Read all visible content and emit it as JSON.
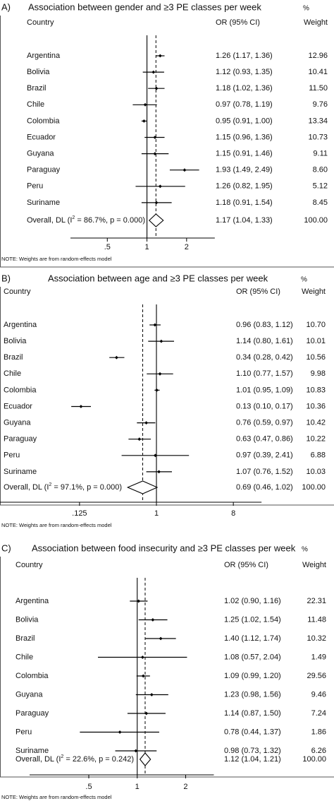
{
  "chart_data": [
    {
      "type": "forest",
      "panel_label": "A)",
      "title": "Association between gender and ≥3 PE classes per week",
      "percent_label": "%",
      "column_headers": {
        "country": "Country",
        "or": "OR (95% CI)",
        "weight": "Weight"
      },
      "x_scale": "log",
      "x_ticks": [
        0.5,
        1,
        2
      ],
      "x_tick_labels": [
        ".5",
        "1",
        "2"
      ],
      "xlim": [
        0.38,
        2.9
      ],
      "null_line": 1,
      "rows": [
        {
          "country": "Argentina",
          "or": 1.26,
          "lo": 1.17,
          "hi": 1.36,
          "ci_text": "1.26 (1.17, 1.36)",
          "weight": "12.96"
        },
        {
          "country": "Bolivia",
          "or": 1.12,
          "lo": 0.93,
          "hi": 1.35,
          "ci_text": "1.12 (0.93, 1.35)",
          "weight": "10.41"
        },
        {
          "country": "Brazil",
          "or": 1.18,
          "lo": 1.02,
          "hi": 1.36,
          "ci_text": "1.18 (1.02, 1.36)",
          "weight": "11.50"
        },
        {
          "country": "Chile",
          "or": 0.97,
          "lo": 0.78,
          "hi": 1.19,
          "ci_text": "0.97 (0.78, 1.19)",
          "weight": "9.76"
        },
        {
          "country": "Colombia",
          "or": 0.95,
          "lo": 0.91,
          "hi": 1.0,
          "ci_text": "0.95 (0.91, 1.00)",
          "weight": "13.34"
        },
        {
          "country": "Ecuador",
          "or": 1.15,
          "lo": 0.96,
          "hi": 1.36,
          "ci_text": "1.15 (0.96, 1.36)",
          "weight": "10.73"
        },
        {
          "country": "Guyana",
          "or": 1.15,
          "lo": 0.91,
          "hi": 1.46,
          "ci_text": "1.15 (0.91, 1.46)",
          "weight": "9.11"
        },
        {
          "country": "Paraguay",
          "or": 1.93,
          "lo": 1.49,
          "hi": 2.49,
          "ci_text": "1.93 (1.49, 2.49)",
          "weight": "8.60"
        },
        {
          "country": "Peru",
          "or": 1.26,
          "lo": 0.82,
          "hi": 1.95,
          "ci_text": "1.26 (0.82, 1.95)",
          "weight": "5.12"
        },
        {
          "country": "Suriname",
          "or": 1.18,
          "lo": 0.91,
          "hi": 1.54,
          "ci_text": "1.18 (0.91, 1.54)",
          "weight": "8.45"
        }
      ],
      "overall": {
        "label_prefix": "Overall, DL (I",
        "label_sup": "2",
        "label_suffix": " = 86.7%, p = 0.000)",
        "or": 1.17,
        "lo": 1.04,
        "hi": 1.33,
        "ci_text": "1.17 (1.04, 1.33)",
        "weight": "100.00"
      },
      "note": "NOTE: Weights are from random-effects model"
    },
    {
      "type": "forest",
      "panel_label": "B)",
      "title": "Association between age and ≥3 PE classes per week",
      "percent_label": "%",
      "column_headers": {
        "country": "Country",
        "or": "OR (95% CI)",
        "weight": "Weight"
      },
      "x_scale": "log",
      "x_ticks": [
        0.125,
        1,
        8
      ],
      "x_tick_labels": [
        ".125",
        "1",
        "8"
      ],
      "xlim": [
        0.023,
        27
      ],
      "null_line": 1,
      "rows": [
        {
          "country": "Argentina",
          "or": 0.96,
          "lo": 0.83,
          "hi": 1.12,
          "ci_text": "0.96 (0.83, 1.12)",
          "weight": "10.70"
        },
        {
          "country": "Bolivia",
          "or": 1.14,
          "lo": 0.8,
          "hi": 1.61,
          "ci_text": "1.14 (0.80, 1.61)",
          "weight": "10.01"
        },
        {
          "country": "Brazil",
          "or": 0.34,
          "lo": 0.28,
          "hi": 0.42,
          "ci_text": "0.34 (0.28, 0.42)",
          "weight": "10.56"
        },
        {
          "country": "Chile",
          "or": 1.1,
          "lo": 0.77,
          "hi": 1.57,
          "ci_text": "1.10 (0.77, 1.57)",
          "weight": "9.98"
        },
        {
          "country": "Colombia",
          "or": 1.01,
          "lo": 0.95,
          "hi": 1.09,
          "ci_text": "1.01 (0.95, 1.09)",
          "weight": "10.83"
        },
        {
          "country": "Ecuador",
          "or": 0.13,
          "lo": 0.1,
          "hi": 0.17,
          "ci_text": "0.13 (0.10, 0.17)",
          "weight": "10.36"
        },
        {
          "country": "Guyana",
          "or": 0.76,
          "lo": 0.59,
          "hi": 0.97,
          "ci_text": "0.76 (0.59, 0.97)",
          "weight": "10.42"
        },
        {
          "country": "Paraguay",
          "or": 0.63,
          "lo": 0.47,
          "hi": 0.86,
          "ci_text": "0.63 (0.47, 0.86)",
          "weight": "10.22"
        },
        {
          "country": "Peru",
          "or": 0.97,
          "lo": 0.39,
          "hi": 2.41,
          "ci_text": "0.97 (0.39, 2.41)",
          "weight": "6.88"
        },
        {
          "country": "Suriname",
          "or": 1.07,
          "lo": 0.76,
          "hi": 1.52,
          "ci_text": "1.07 (0.76, 1.52)",
          "weight": "10.03"
        }
      ],
      "overall": {
        "label_prefix": "Overall, DL (I",
        "label_sup": "2",
        "label_suffix": " = 97.1%, p = 0.000)",
        "or": 0.69,
        "lo": 0.46,
        "hi": 1.02,
        "ci_text": "0.69 (0.46, 1.02)",
        "weight": "100.00"
      },
      "note": "NOTE: Weights are from random-effects model"
    },
    {
      "type": "forest",
      "panel_label": "C)",
      "title": "Association between food insecurity and ≥3 PE classes per week",
      "percent_label": "%",
      "column_headers": {
        "country": "Country",
        "or": "OR (95% CI)",
        "weight": "Weight"
      },
      "x_scale": "log",
      "x_ticks": [
        0.5,
        1,
        2
      ],
      "x_tick_labels": [
        ".5",
        "1",
        "2"
      ],
      "xlim": [
        0.29,
        2.95
      ],
      "null_line": 1,
      "rows": [
        {
          "country": "Argentina",
          "or": 1.02,
          "lo": 0.9,
          "hi": 1.16,
          "ci_text": "1.02 (0.90, 1.16)",
          "weight": "22.31"
        },
        {
          "country": "Bolivia",
          "or": 1.25,
          "lo": 1.02,
          "hi": 1.54,
          "ci_text": "1.25 (1.02, 1.54)",
          "weight": "11.48"
        },
        {
          "country": "Brazil",
          "or": 1.4,
          "lo": 1.12,
          "hi": 1.74,
          "ci_text": "1.40 (1.12, 1.74)",
          "weight": "10.32"
        },
        {
          "country": "Chile",
          "or": 1.08,
          "lo": 0.57,
          "hi": 2.04,
          "ci_text": "1.08 (0.57, 2.04)",
          "weight": "1.49"
        },
        {
          "country": "Colombia",
          "or": 1.09,
          "lo": 0.99,
          "hi": 1.2,
          "ci_text": "1.09 (0.99, 1.20)",
          "weight": "29.56"
        },
        {
          "country": "Guyana",
          "or": 1.23,
          "lo": 0.98,
          "hi": 1.56,
          "ci_text": "1.23 (0.98, 1.56)",
          "weight": "9.46"
        },
        {
          "country": "Paraguay",
          "or": 1.14,
          "lo": 0.87,
          "hi": 1.5,
          "ci_text": "1.14 (0.87, 1.50)",
          "weight": "7.24"
        },
        {
          "country": "Peru",
          "or": 0.78,
          "lo": 0.44,
          "hi": 1.37,
          "ci_text": "0.78 (0.44, 1.37)",
          "weight": "1.86"
        },
        {
          "country": "Suriname",
          "or": 0.98,
          "lo": 0.73,
          "hi": 1.32,
          "ci_text": "0.98 (0.73, 1.32)",
          "weight": "6.26"
        }
      ],
      "overall": {
        "label_prefix": "Overall, DL (I",
        "label_sup": "2",
        "label_suffix": " = 22.6%, p = 0.242)",
        "or": 1.12,
        "lo": 1.04,
        "hi": 1.21,
        "ci_text": "1.12 (1.04, 1.21)",
        "weight": "100.00"
      },
      "note": "NOTE: Weights are from random-effects model"
    }
  ]
}
